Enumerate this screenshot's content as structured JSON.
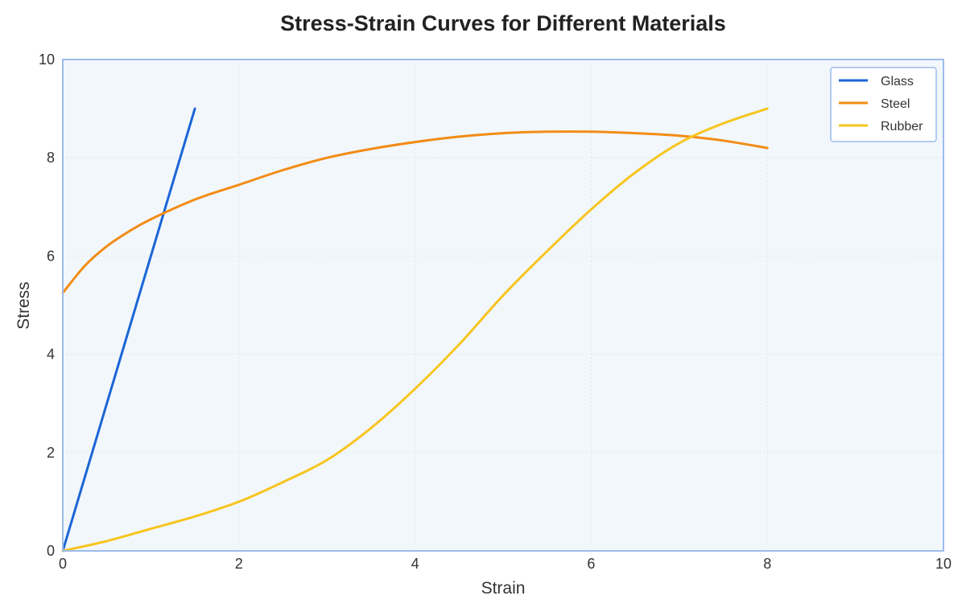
{
  "chart_data": {
    "type": "line",
    "title": "Stress-Strain Curves for Different Materials",
    "xlabel": "Strain",
    "ylabel": "Stress",
    "xlim": [
      0,
      10
    ],
    "ylim": [
      0,
      10
    ],
    "x_ticks": [
      0,
      2,
      4,
      6,
      8,
      10
    ],
    "y_ticks": [
      0,
      2,
      4,
      6,
      8,
      10
    ],
    "grid": true,
    "legend_position": "top-right",
    "colors": {
      "plot_background": "#f2f7fc",
      "frame": "#9dbcec",
      "grid": "#dde6f1"
    },
    "series": [
      {
        "name": "Glass",
        "color": "#1a66d6",
        "x": [
          0,
          1.5
        ],
        "y": [
          0,
          9.0
        ]
      },
      {
        "name": "Steel",
        "color": "#f28c15",
        "x": [
          0,
          0.25,
          0.5,
          0.75,
          1.0,
          1.5,
          2.0,
          2.5,
          3.0,
          3.5,
          4.0,
          4.5,
          5.0,
          5.5,
          6.0,
          6.5,
          7.0,
          7.5,
          8.0
        ],
        "y": [
          5.25,
          5.8,
          6.2,
          6.5,
          6.75,
          7.15,
          7.45,
          7.75,
          8.0,
          8.18,
          8.32,
          8.43,
          8.5,
          8.53,
          8.53,
          8.5,
          8.45,
          8.35,
          8.2
        ]
      },
      {
        "name": "Rubber",
        "color": "#f7c51e",
        "x": [
          0,
          0.5,
          1.0,
          1.5,
          2.0,
          2.5,
          3.0,
          3.5,
          4.0,
          4.5,
          5.0,
          5.5,
          6.0,
          6.5,
          7.0,
          7.5,
          8.0
        ],
        "y": [
          0,
          0.2,
          0.45,
          0.7,
          1.0,
          1.4,
          1.85,
          2.5,
          3.3,
          4.2,
          5.2,
          6.1,
          6.95,
          7.7,
          8.3,
          8.7,
          9.0
        ]
      }
    ]
  }
}
